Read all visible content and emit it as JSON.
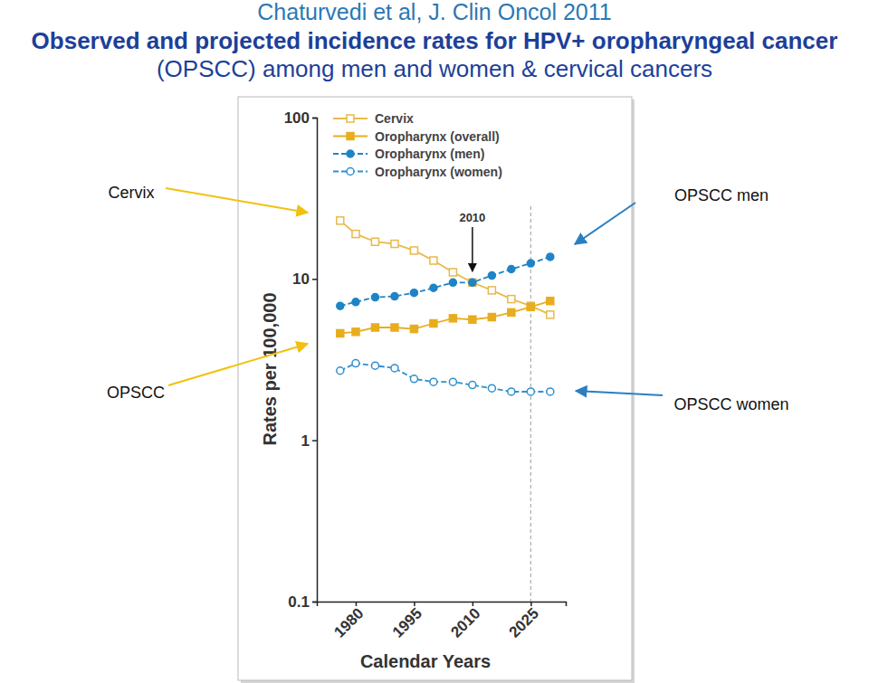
{
  "chart_data": {
    "type": "line",
    "subtitle": "Chaturvedi et al, J. Clin Oncol 2011",
    "title": "Observed and projected incidence rates for HPV+ oropharyngeal cancer (OPSCC) among men and women & cervical cancers",
    "x_label": "Calendar Years",
    "y_label": "Rates per 100,000",
    "log": "y",
    "legend": "upper left",
    "x": [
      1976,
      1980,
      1985,
      1990,
      1995,
      2000,
      2005,
      2010,
      2015,
      2020,
      2025,
      2030
    ],
    "xlim": [
      1970,
      2034
    ],
    "xticks": [
      1980,
      1995,
      2010,
      2025
    ],
    "ylim": [
      0.1,
      100
    ],
    "yticks": [
      0.1,
      1,
      10,
      100
    ],
    "vlines": [
      2025
    ],
    "series": [
      {
        "name": "Cervix",
        "color": "#e9b949",
        "marker": "square-open",
        "line_style": "solid",
        "values": [
          23,
          19,
          17,
          16.5,
          15,
          13,
          11,
          9.5,
          8.5,
          7.5,
          6.8,
          6
        ]
      },
      {
        "name": "Oropharynx (overall)",
        "color": "#e8ad1e",
        "marker": "square",
        "line_style": "solid",
        "values": [
          4.6,
          4.7,
          5.0,
          5.0,
          4.9,
          5.3,
          5.7,
          5.6,
          5.8,
          6.2,
          6.7,
          7.3
        ]
      },
      {
        "name": "Oropharynx (men)",
        "color": "#1f84c6",
        "marker": "circle",
        "line_style": "dashed",
        "values": [
          6.8,
          7.2,
          7.7,
          7.8,
          8.2,
          8.8,
          9.5,
          9.5,
          10.5,
          11.5,
          12.5,
          13.7
        ]
      },
      {
        "name": "Oropharynx (women)",
        "color": "#2f8fcf",
        "marker": "circle-open",
        "line_style": "dashed",
        "values": [
          2.7,
          3.0,
          2.9,
          2.8,
          2.4,
          2.3,
          2.3,
          2.2,
          2.1,
          2.0,
          2.0,
          2.0
        ]
      }
    ],
    "annotations": [
      {
        "text": "2010",
        "x": 2010
      },
      {
        "text": "Cervix"
      },
      {
        "text": "OPSCC"
      },
      {
        "text": "OPSCC men"
      },
      {
        "text": "OPSCC women"
      }
    ]
  }
}
